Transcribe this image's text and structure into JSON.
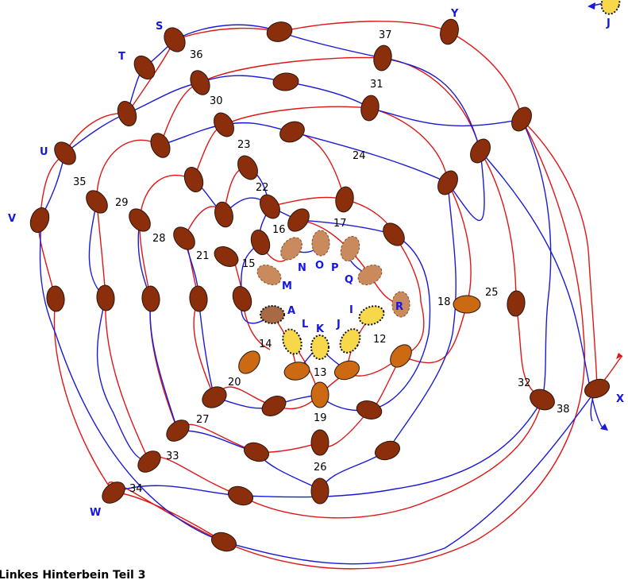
{
  "title": "Linkes Hinterbein Teil 3",
  "colors": {
    "red_thread": "#e01616",
    "blue_thread": "#1a1ad6",
    "bead_dark": "#8b2e0c",
    "bead_orange": "#cc6a14",
    "bead_tan": "#c98a5e",
    "bead_yellow": "#f7d84a",
    "letter": "#1515e6"
  },
  "numbers": [
    "12",
    "13",
    "14",
    "15",
    "16",
    "17",
    "18",
    "19",
    "20",
    "21",
    "22",
    "23",
    "24",
    "25",
    "26",
    "27",
    "28",
    "29",
    "30",
    "31",
    "32",
    "33",
    "34",
    "35",
    "36",
    "37",
    "38"
  ],
  "letters": [
    "A",
    "I",
    "J",
    "K",
    "L",
    "M",
    "N",
    "O",
    "P",
    "Q",
    "R",
    "S",
    "T",
    "U",
    "V",
    "W",
    "X",
    "Y",
    "J"
  ]
}
